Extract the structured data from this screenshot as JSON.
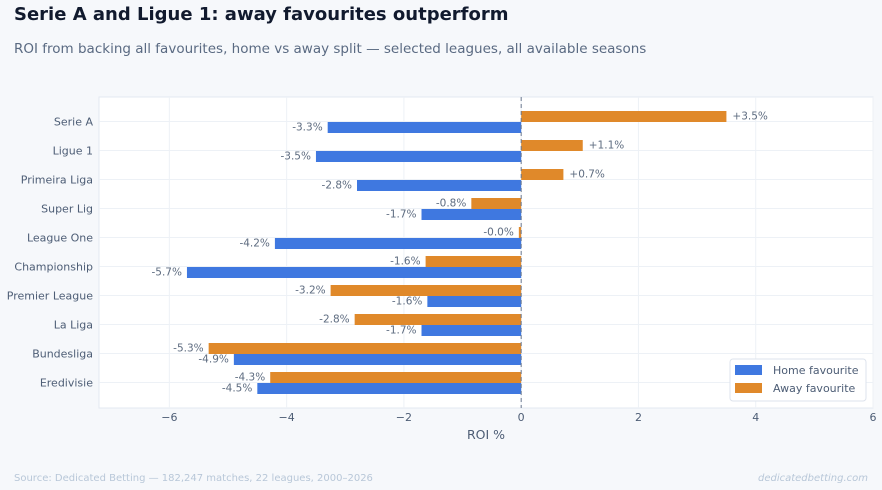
{
  "header": {
    "title": "Serie A and Ligue 1: away favourites outperform",
    "subtitle": "ROI from backing all favourites, home vs away split — selected leagues, all available seasons"
  },
  "footer": {
    "source": "Source: Dedicated Betting — 182,247 matches, 22 leagues, 2000–2026",
    "brand": "dedicatedbetting.com"
  },
  "chart_data": {
    "type": "bar",
    "orientation": "horizontal",
    "categories": [
      "Serie A",
      "Ligue 1",
      "Primeira Liga",
      "Super Lig",
      "League One",
      "Championship",
      "Premier League",
      "La Liga",
      "Bundesliga",
      "Eredivisie"
    ],
    "series": [
      {
        "name": "Home favourite",
        "color": "#3f78e0",
        "values": [
          -3.3,
          -3.5,
          -2.8,
          -1.7,
          -4.2,
          -5.7,
          -1.6,
          -1.7,
          -4.9,
          -4.5
        ],
        "labels": [
          "-3.3%",
          "-3.5%",
          "-2.8%",
          "-1.7%",
          "-4.2%",
          "-5.7%",
          "-1.6%",
          "-1.7%",
          "-4.9%",
          "-4.5%"
        ]
      },
      {
        "name": "Away favourite",
        "color": "#e0892a",
        "values": [
          3.5,
          1.05,
          0.72,
          -0.85,
          -0.04,
          -1.63,
          -3.25,
          -2.84,
          -5.33,
          -4.28
        ],
        "labels": [
          "+3.5%",
          "+1.1%",
          "+0.7%",
          "-0.8%",
          "-0.0%",
          "-1.6%",
          "-3.2%",
          "-2.8%",
          "-5.3%",
          "-4.3%"
        ]
      }
    ],
    "xlabel": "ROI %",
    "xlim": [
      -7.2,
      6
    ],
    "xticks": [
      -6,
      -4,
      -2,
      0,
      2,
      4,
      6
    ],
    "xtick_labels": [
      "−6",
      "−4",
      "−2",
      "0",
      "2",
      "4",
      "6"
    ],
    "grid": true,
    "zero_line": "dashed",
    "legend_position": "bottom-right"
  }
}
